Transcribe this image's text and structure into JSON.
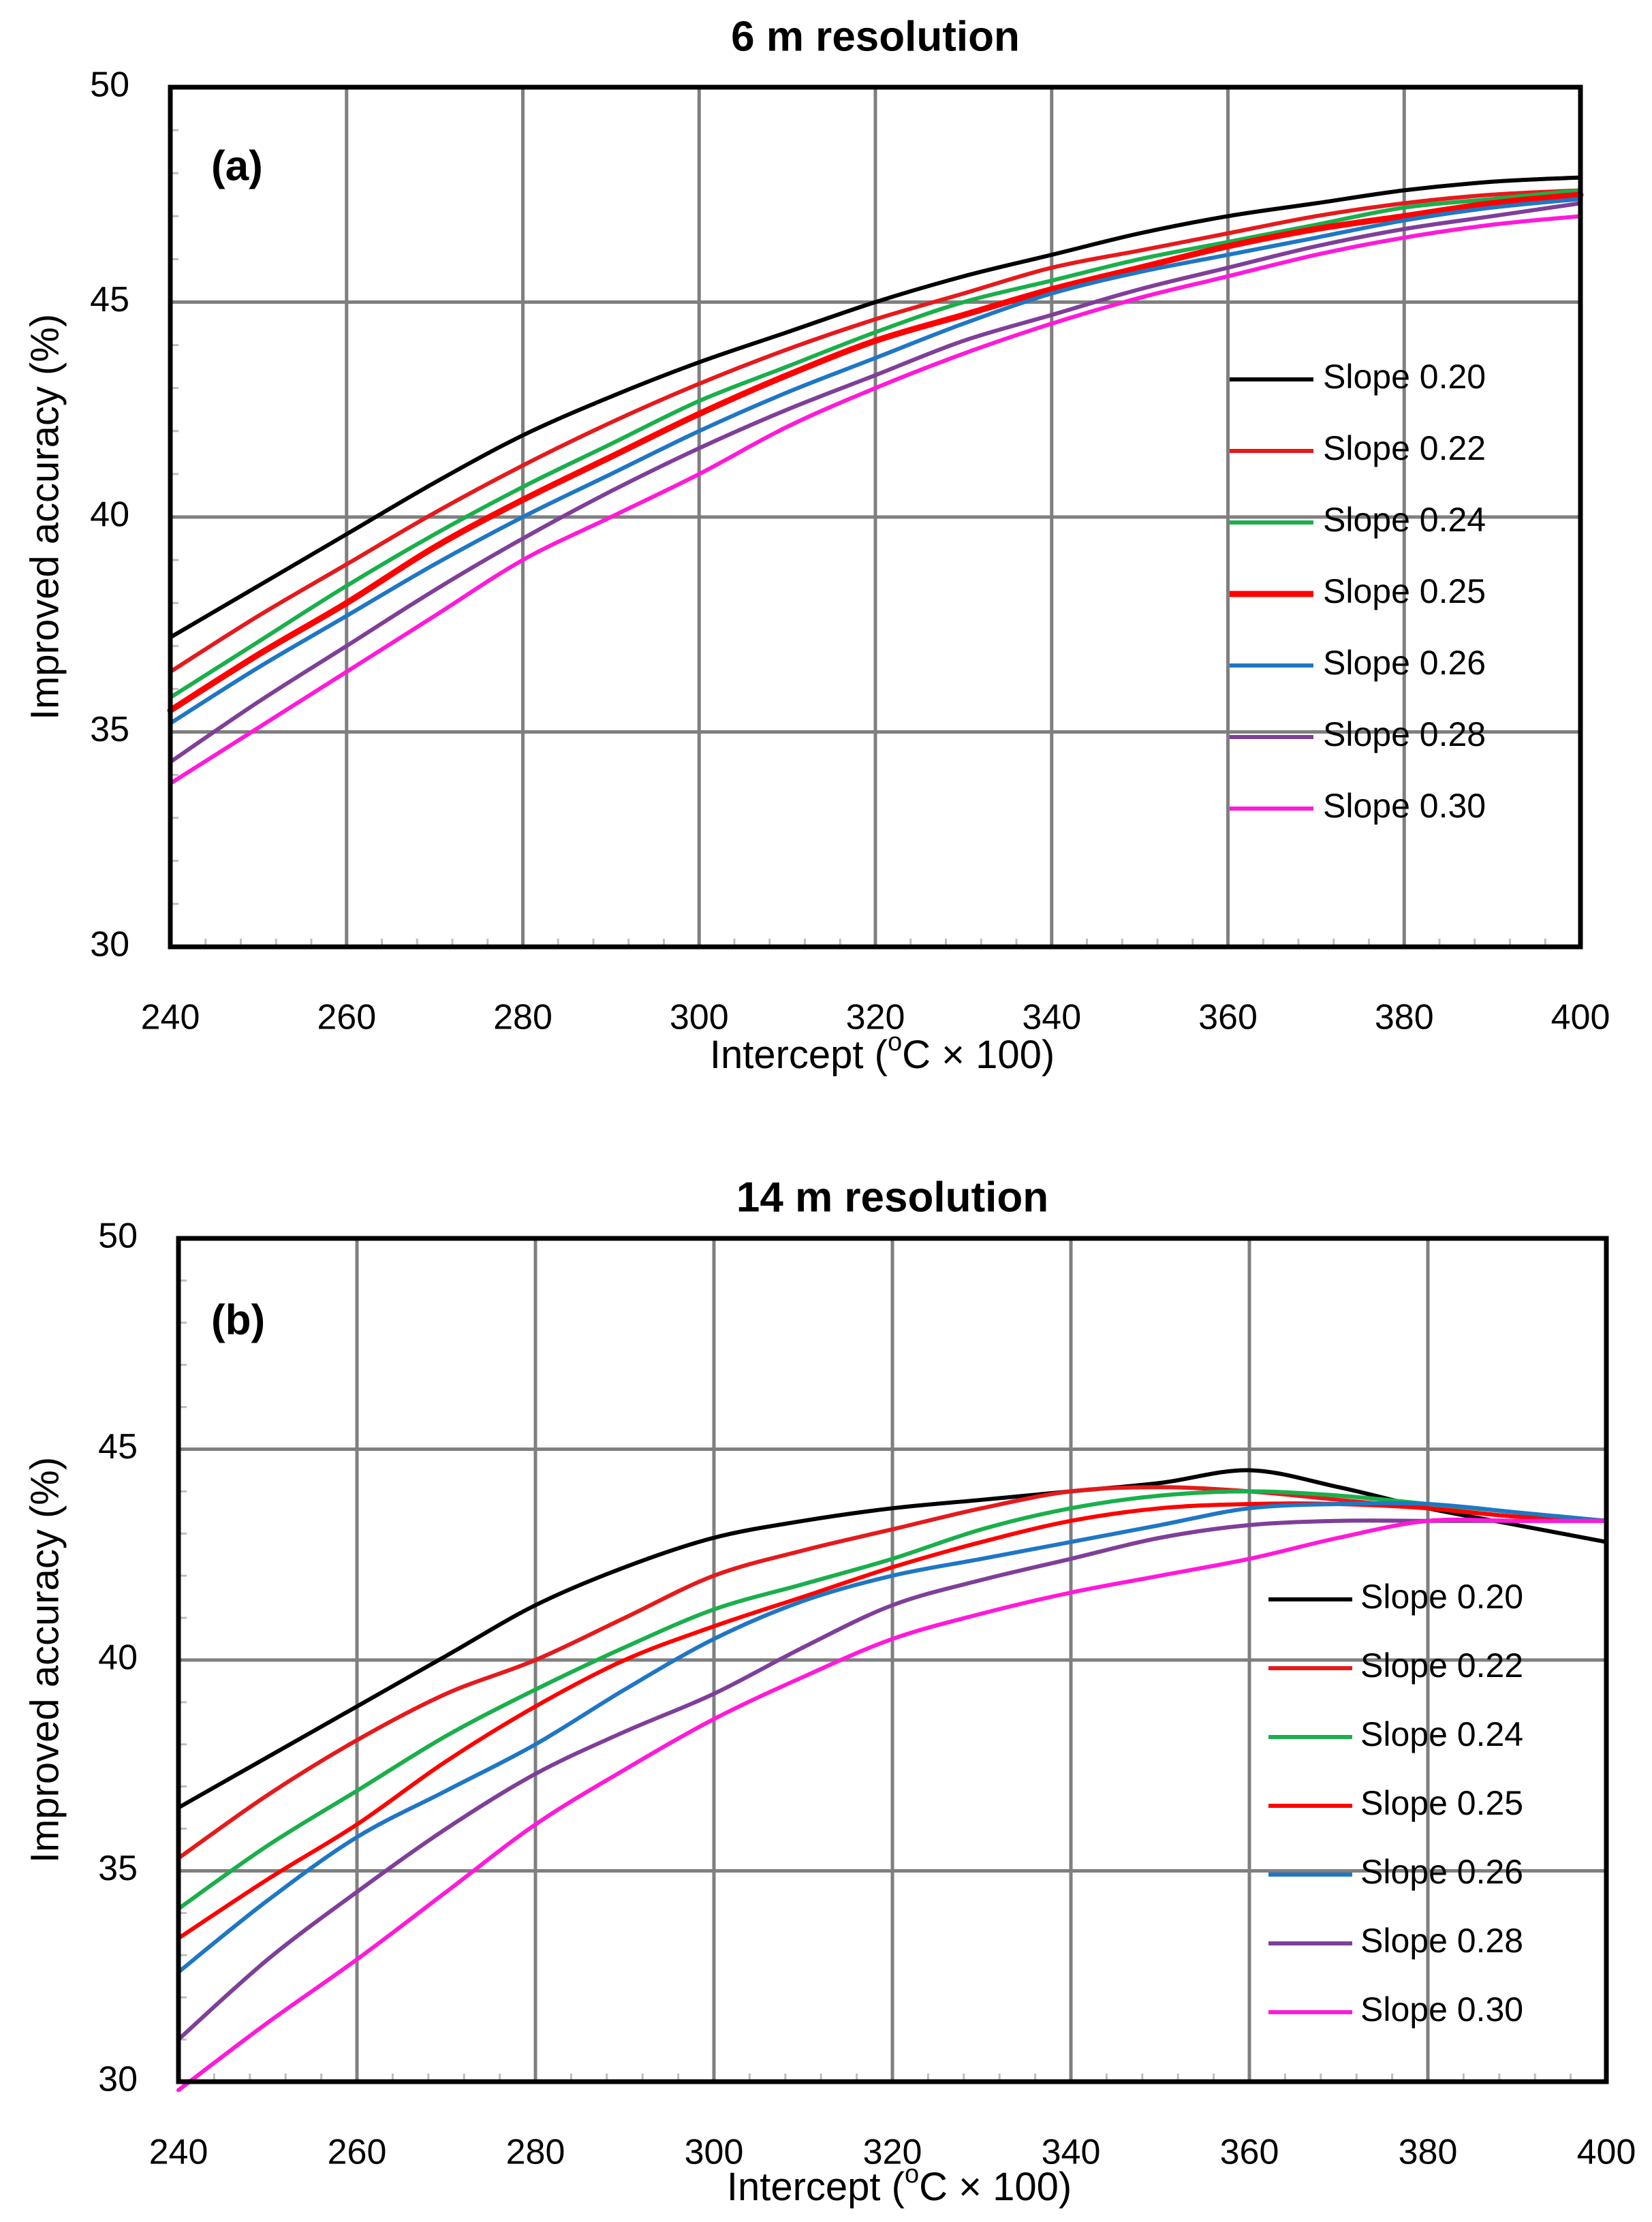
{
  "chart_data": [
    {
      "type": "line",
      "title": "6 m resolution",
      "panel_label": "(a)",
      "xlabel": "Intercept (oC × 100)",
      "ylabel": "Improved accuracy (%)",
      "xlim": [
        240,
        400
      ],
      "ylim": [
        30,
        50
      ],
      "xticks": [
        240,
        260,
        280,
        300,
        320,
        340,
        360,
        380,
        400
      ],
      "yticks": [
        30,
        35,
        40,
        45,
        50
      ],
      "grid": true,
      "legend_position": "right",
      "x": [
        240,
        250,
        260,
        270,
        280,
        290,
        300,
        310,
        320,
        330,
        340,
        350,
        360,
        370,
        380,
        390,
        400
      ],
      "series": [
        {
          "name": "Slope 0.20",
          "color": "#000000",
          "values": [
            37.2,
            38.4,
            39.6,
            40.8,
            41.9,
            42.8,
            43.6,
            44.3,
            45.0,
            45.6,
            46.1,
            46.6,
            47.0,
            47.3,
            47.6,
            47.8,
            47.9
          ]
        },
        {
          "name": "Slope 0.22",
          "color": "#e41a1c",
          "values": [
            36.4,
            37.7,
            38.9,
            40.1,
            41.2,
            42.2,
            43.1,
            43.9,
            44.6,
            45.2,
            45.8,
            46.2,
            46.6,
            47.0,
            47.3,
            47.5,
            47.6
          ]
        },
        {
          "name": "Slope 0.24",
          "color": "#1aaf4b",
          "values": [
            35.8,
            37.1,
            38.4,
            39.6,
            40.7,
            41.7,
            42.7,
            43.5,
            44.3,
            45.0,
            45.5,
            46.0,
            46.4,
            46.8,
            47.2,
            47.4,
            47.6
          ]
        },
        {
          "name": "Slope 0.25",
          "color": "#ff0000",
          "values": [
            35.5,
            36.8,
            38.0,
            39.3,
            40.4,
            41.4,
            42.4,
            43.3,
            44.1,
            44.7,
            45.3,
            45.8,
            46.3,
            46.7,
            47.0,
            47.3,
            47.5
          ]
        },
        {
          "name": "Slope 0.26",
          "color": "#1f77c4",
          "values": [
            35.2,
            36.5,
            37.7,
            38.9,
            40.0,
            41.0,
            42.0,
            42.9,
            43.7,
            44.5,
            45.2,
            45.7,
            46.1,
            46.5,
            46.9,
            47.2,
            47.4
          ]
        },
        {
          "name": "Slope 0.28",
          "color": "#7f3f98",
          "values": [
            34.3,
            35.7,
            37.0,
            38.3,
            39.5,
            40.6,
            41.6,
            42.5,
            43.3,
            44.1,
            44.7,
            45.3,
            45.8,
            46.3,
            46.7,
            47.0,
            47.3
          ]
        },
        {
          "name": "Slope 0.30",
          "color": "#ff1ad9",
          "values": [
            33.8,
            35.1,
            36.4,
            37.7,
            39.0,
            40.0,
            41.0,
            42.1,
            43.0,
            43.8,
            44.5,
            45.1,
            45.6,
            46.1,
            46.5,
            46.8,
            47.0
          ]
        }
      ]
    },
    {
      "type": "line",
      "title": "14 m resolution",
      "panel_label": "(b)",
      "xlabel": "Intercept (oC × 100)",
      "ylabel": "Improved accuracy (%)",
      "xlim": [
        240,
        400
      ],
      "ylim": [
        30,
        50
      ],
      "xticks": [
        240,
        260,
        280,
        300,
        320,
        340,
        360,
        380,
        400
      ],
      "yticks": [
        30,
        35,
        40,
        45,
        50
      ],
      "grid": true,
      "legend_position": "right",
      "x": [
        240,
        250,
        260,
        270,
        280,
        290,
        300,
        310,
        320,
        330,
        340,
        350,
        360,
        370,
        380,
        390,
        400
      ],
      "series": [
        {
          "name": "Slope 0.20",
          "color": "#000000",
          "values": [
            36.5,
            37.7,
            38.9,
            40.1,
            41.3,
            42.2,
            42.9,
            43.3,
            43.6,
            43.8,
            44.0,
            44.2,
            44.5,
            44.1,
            43.6,
            43.2,
            42.8
          ]
        },
        {
          "name": "Slope 0.22",
          "color": "#e41a1c",
          "values": [
            35.3,
            36.8,
            38.1,
            39.2,
            40.0,
            41.0,
            42.0,
            42.6,
            43.1,
            43.6,
            44.0,
            44.1,
            44.0,
            43.8,
            43.6,
            43.4,
            43.3
          ]
        },
        {
          "name": "Slope 0.24",
          "color": "#1aaf4b",
          "values": [
            34.1,
            35.6,
            36.9,
            38.2,
            39.3,
            40.3,
            41.2,
            41.8,
            42.4,
            43.1,
            43.6,
            43.9,
            44.0,
            43.9,
            43.7,
            43.5,
            43.3
          ]
        },
        {
          "name": "Slope 0.25",
          "color": "#ff0000",
          "values": [
            33.4,
            34.8,
            36.1,
            37.6,
            38.9,
            40.0,
            40.8,
            41.5,
            42.2,
            42.8,
            43.3,
            43.6,
            43.7,
            43.7,
            43.6,
            43.4,
            43.3
          ]
        },
        {
          "name": "Slope 0.26",
          "color": "#1f77c4",
          "values": [
            32.6,
            34.3,
            35.8,
            36.9,
            38.0,
            39.3,
            40.5,
            41.4,
            42.0,
            42.4,
            42.8,
            43.2,
            43.6,
            43.7,
            43.7,
            43.5,
            43.3
          ]
        },
        {
          "name": "Slope 0.28",
          "color": "#7f3f98",
          "values": [
            31.0,
            32.9,
            34.5,
            36.0,
            37.3,
            38.3,
            39.2,
            40.3,
            41.3,
            41.9,
            42.4,
            42.9,
            43.2,
            43.3,
            43.3,
            43.3,
            43.3
          ]
        },
        {
          "name": "Slope 0.30",
          "color": "#ff1ad9",
          "values": [
            29.8,
            31.4,
            32.9,
            34.5,
            36.1,
            37.4,
            38.6,
            39.6,
            40.5,
            41.1,
            41.6,
            42.0,
            42.4,
            42.9,
            43.3,
            43.3,
            43.3
          ]
        }
      ]
    }
  ]
}
